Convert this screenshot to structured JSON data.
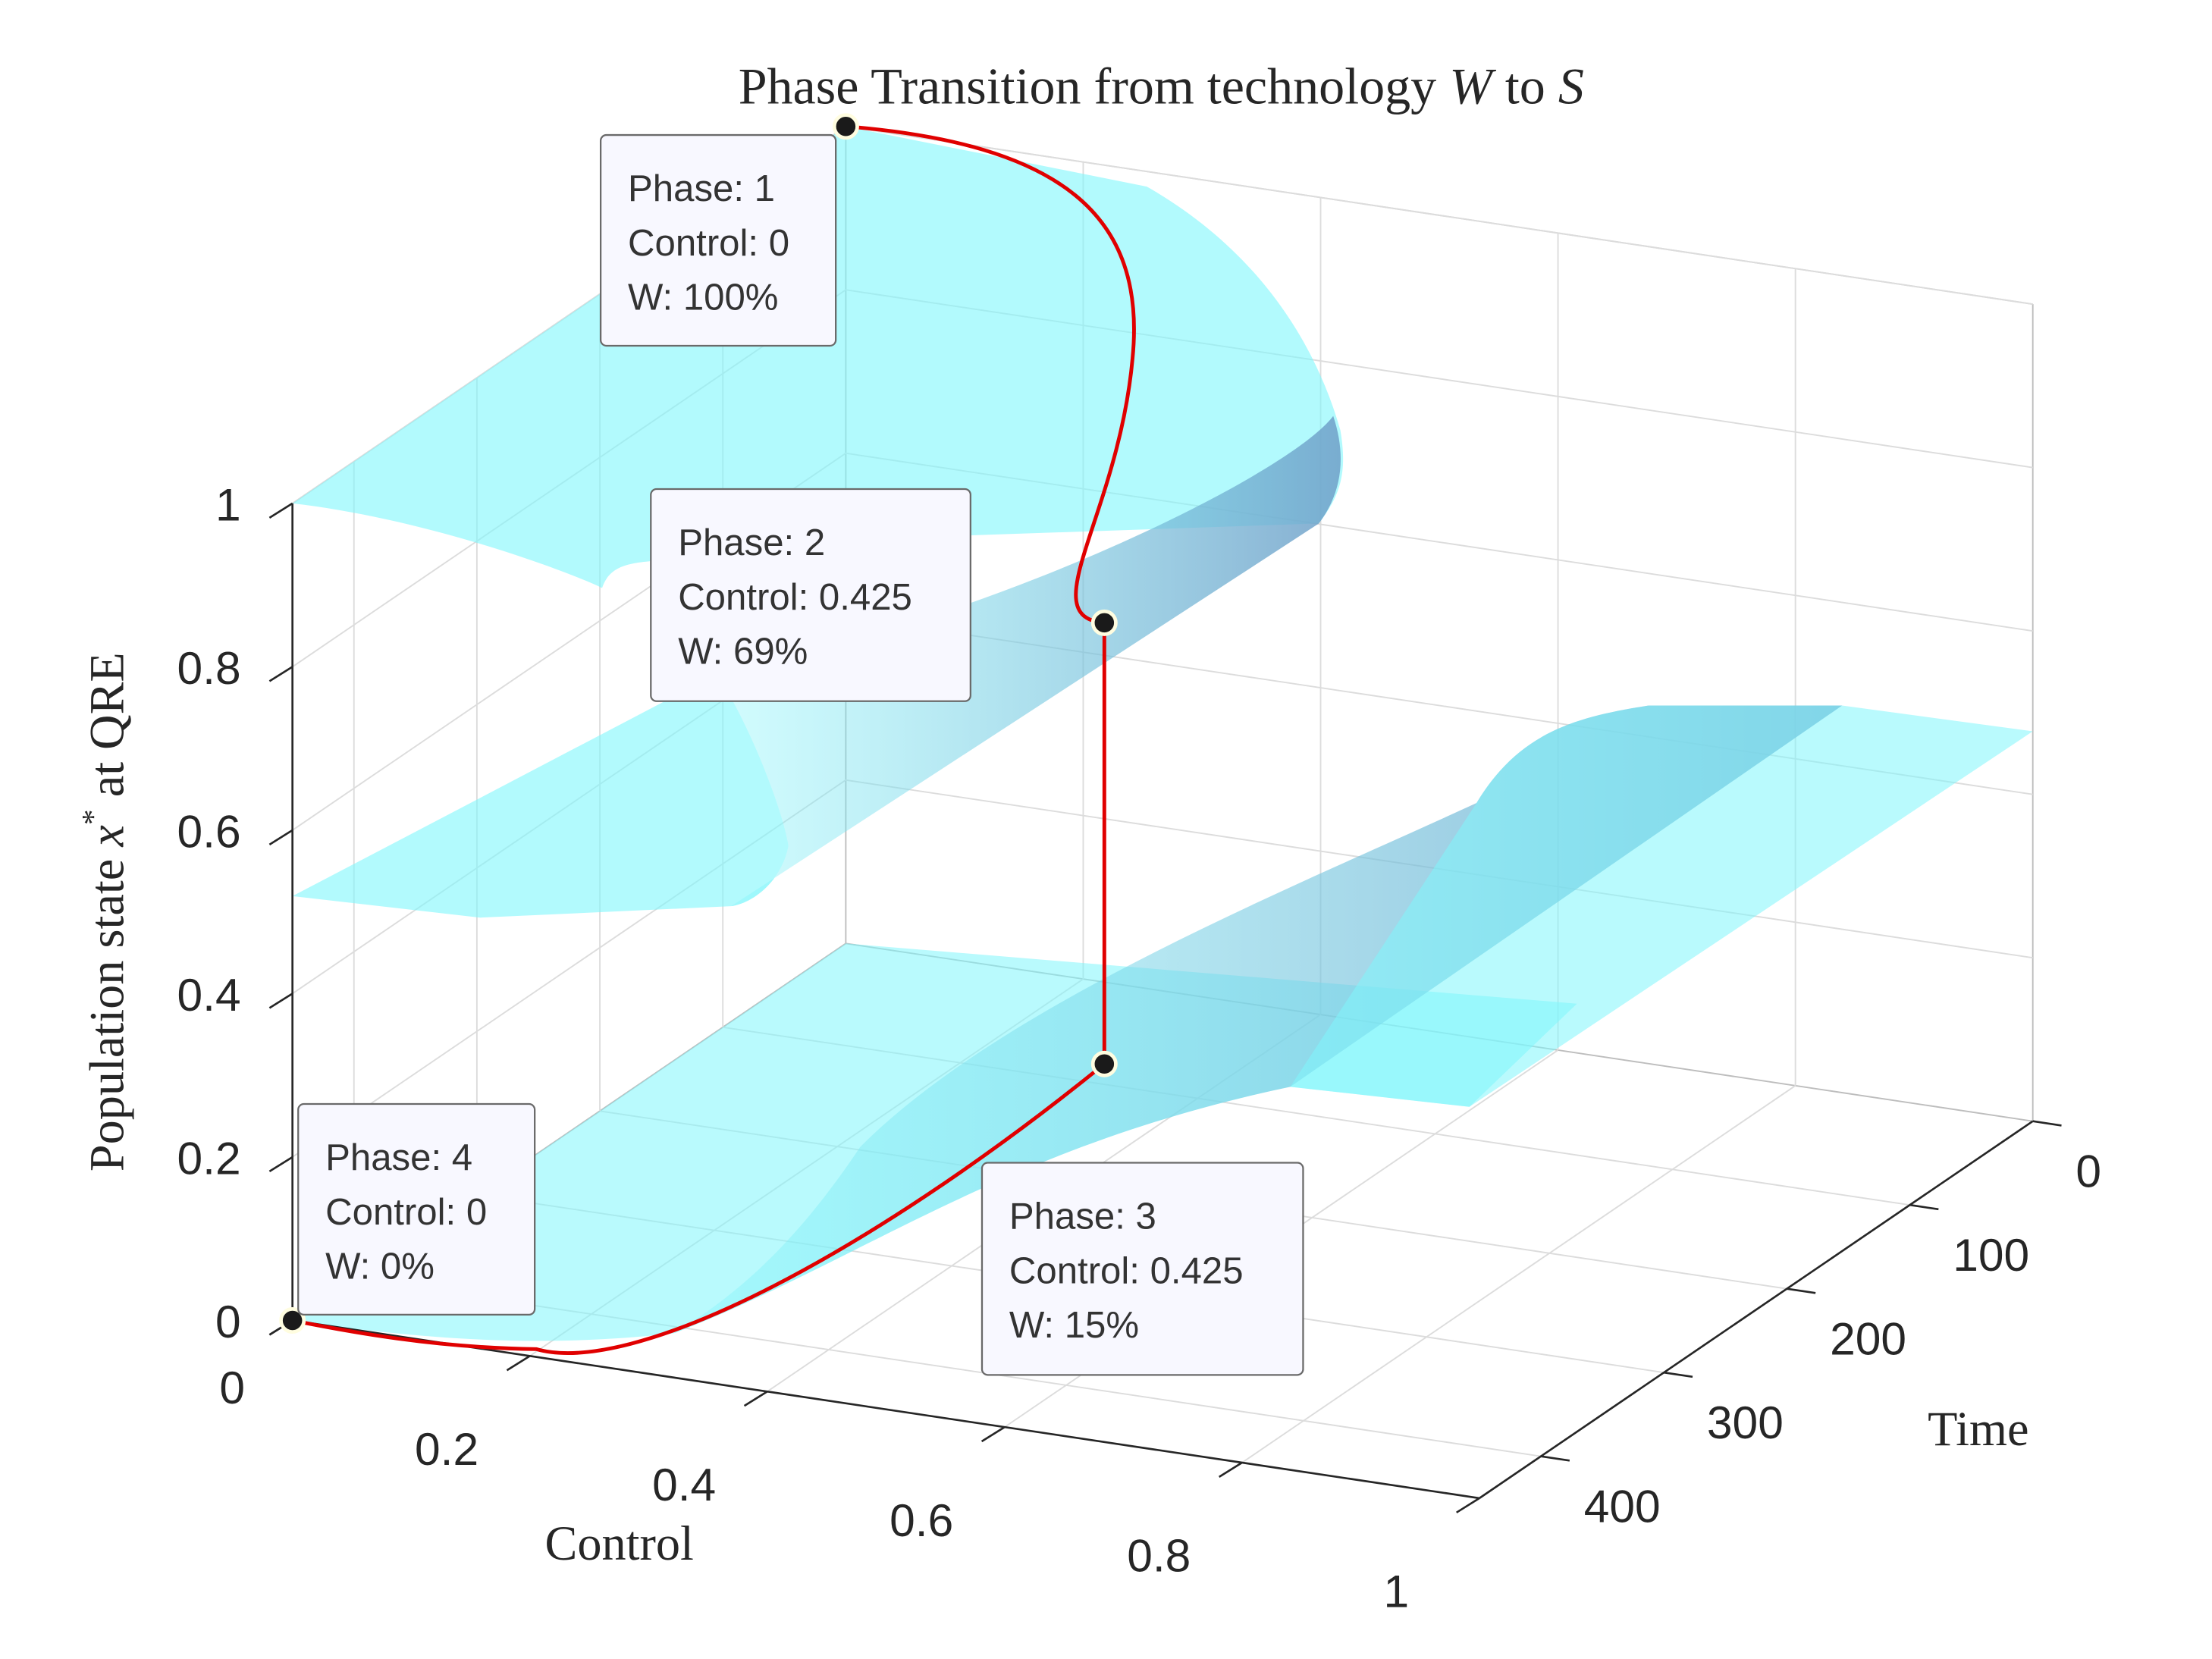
{
  "chart_data": {
    "type": "surface3d",
    "title": {
      "prefix": "Phase Transition from technology ",
      "var_a": "W",
      "middle": " to ",
      "var_b": "S"
    },
    "zlabel": {
      "prefix": "Population state ",
      "var": "x",
      "sup": "*",
      "suffix": " at QRE"
    },
    "xlabel": "Control",
    "ylabel": "Time",
    "xlim": [
      0,
      1
    ],
    "ylim": [
      0,
      450
    ],
    "zlim": [
      0,
      1
    ],
    "xticks": [
      "0",
      "0.2",
      "0.4",
      "0.6",
      "0.8",
      "1"
    ],
    "yticks": [
      "0",
      "100",
      "200",
      "300",
      "400"
    ],
    "zticks": [
      "0",
      "0.2",
      "0.4",
      "0.6",
      "0.8",
      "1"
    ],
    "grid": true,
    "surface_color": "#7ff6fb",
    "surface_shadow_color": "#6f9fc8",
    "path_color": "#e00000",
    "annotations": [
      {
        "phase": "Phase: 1",
        "control": "Control: 0",
        "w": "W: 100%"
      },
      {
        "phase": "Phase: 2",
        "control": "Control: 0.425",
        "w": "W: 69%"
      },
      {
        "phase": "Phase: 3",
        "control": "Control: 0.425",
        "w": "W: 15%"
      },
      {
        "phase": "Phase: 4",
        "control": "Control: 0",
        "w": "W: 0%"
      }
    ],
    "phase_points": [
      {
        "control": 0,
        "time": 0,
        "x": 1.0
      },
      {
        "control": 0.425,
        "time": 200,
        "x": 0.69
      },
      {
        "control": 0.425,
        "time": 200,
        "x": 0.15
      },
      {
        "control": 0,
        "time": 450,
        "x": 0.0
      }
    ]
  }
}
